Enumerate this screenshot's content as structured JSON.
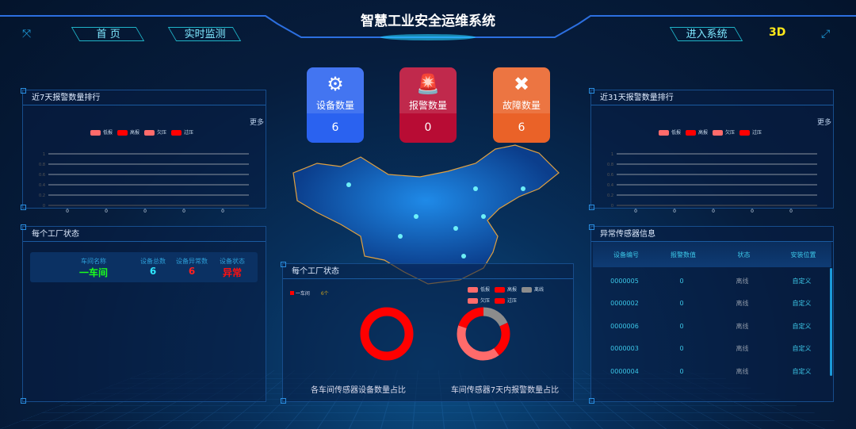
{
  "header": {
    "title": "智慧工业安全运维系统",
    "nav_left": [
      "首 页",
      "实时监测"
    ],
    "nav_right": "进入系统",
    "mode_3d": "3D"
  },
  "cards": [
    {
      "label": "设备数量",
      "value": "6",
      "icon": "gear-icon",
      "color": "#2a62f0"
    },
    {
      "label": "报警数量",
      "value": "0",
      "icon": "alarm-light-icon",
      "color": "#b80c34"
    },
    {
      "label": "故障数量",
      "value": "6",
      "icon": "tools-icon",
      "color": "#ea6228"
    }
  ],
  "left_chart": {
    "title": "近7天报警数量排行",
    "more": "更多"
  },
  "right_chart": {
    "title": "近31天报警数量排行",
    "more": "更多"
  },
  "factory": {
    "title": "每个工厂状态",
    "headers": [
      "车间名称",
      "设备总数",
      "设备异常数",
      "设备状态"
    ],
    "row": {
      "name": "一车间",
      "total": "6",
      "abnormal": "6",
      "status": "异常"
    }
  },
  "sensors": {
    "title": "异常传感器信息",
    "headers": [
      "设备编号",
      "报警数值",
      "状态",
      "安装位置"
    ],
    "rows": [
      [
        "0000005",
        "0",
        "离线",
        "自定义"
      ],
      [
        "0000002",
        "0",
        "离线",
        "自定义"
      ],
      [
        "0000006",
        "0",
        "离线",
        "自定义"
      ],
      [
        "0000003",
        "0",
        "离线",
        "自定义"
      ],
      [
        "0000004",
        "0",
        "离线",
        "自定义"
      ]
    ]
  },
  "center": {
    "title": "每个工厂状态",
    "legend_workshop": "一车间",
    "legend_count": "6个",
    "caption_left": "各车间传感器设备数量占比",
    "caption_right": "车间传感器7天内报警数量占比"
  },
  "chart_data": [
    {
      "type": "bar",
      "title": "近7天报警数量排行",
      "legend": [
        {
          "name": "低报",
          "color": "#ff6b6b"
        },
        {
          "name": "高报",
          "color": "#ff0000"
        },
        {
          "name": "欠压",
          "color": "#ff6b6b"
        },
        {
          "name": "过压",
          "color": "#ff0000"
        }
      ],
      "categories": [
        "0",
        "0",
        "0",
        "0",
        "0"
      ],
      "yticks": [
        "0",
        "0.2",
        "0.4",
        "0.6",
        "0.8",
        "1"
      ],
      "ylim": [
        0,
        1
      ],
      "grid": true
    },
    {
      "type": "bar",
      "title": "近31天报警数量排行",
      "legend": [
        {
          "name": "低报",
          "color": "#ff6b6b"
        },
        {
          "name": "高报",
          "color": "#ff0000"
        },
        {
          "name": "欠压",
          "color": "#ff6b6b"
        },
        {
          "name": "过压",
          "color": "#ff0000"
        }
      ],
      "categories": [
        "0",
        "0",
        "0",
        "0",
        "0"
      ],
      "yticks": [
        "0",
        "0.2",
        "0.4",
        "0.6",
        "0.8",
        "1"
      ],
      "ylim": [
        0,
        1
      ],
      "grid": true
    },
    {
      "type": "pie",
      "title": "各车间传感器设备数量占比",
      "slices": [
        {
          "name": "一车间",
          "value": 6,
          "color": "#ff0000"
        }
      ]
    },
    {
      "type": "pie",
      "title": "车间传感器7天内报警数量占比",
      "legend": [
        {
          "name": "低报",
          "color": "#ff6b6b"
        },
        {
          "name": "高报",
          "color": "#ff0000"
        },
        {
          "name": "离线",
          "color": "#8c8c8c"
        },
        {
          "name": "欠压",
          "color": "#ff6b6b"
        },
        {
          "name": "过压",
          "color": "#ff0000"
        }
      ],
      "slices": [
        {
          "name": "离线",
          "value": 18,
          "color": "#8c8c8c"
        },
        {
          "name": "高报",
          "value": 22,
          "color": "#ff0000"
        },
        {
          "name": "欠压",
          "value": 40,
          "color": "#ff6b6b"
        },
        {
          "name": "过压",
          "value": 20,
          "color": "#ff0000"
        }
      ]
    }
  ]
}
